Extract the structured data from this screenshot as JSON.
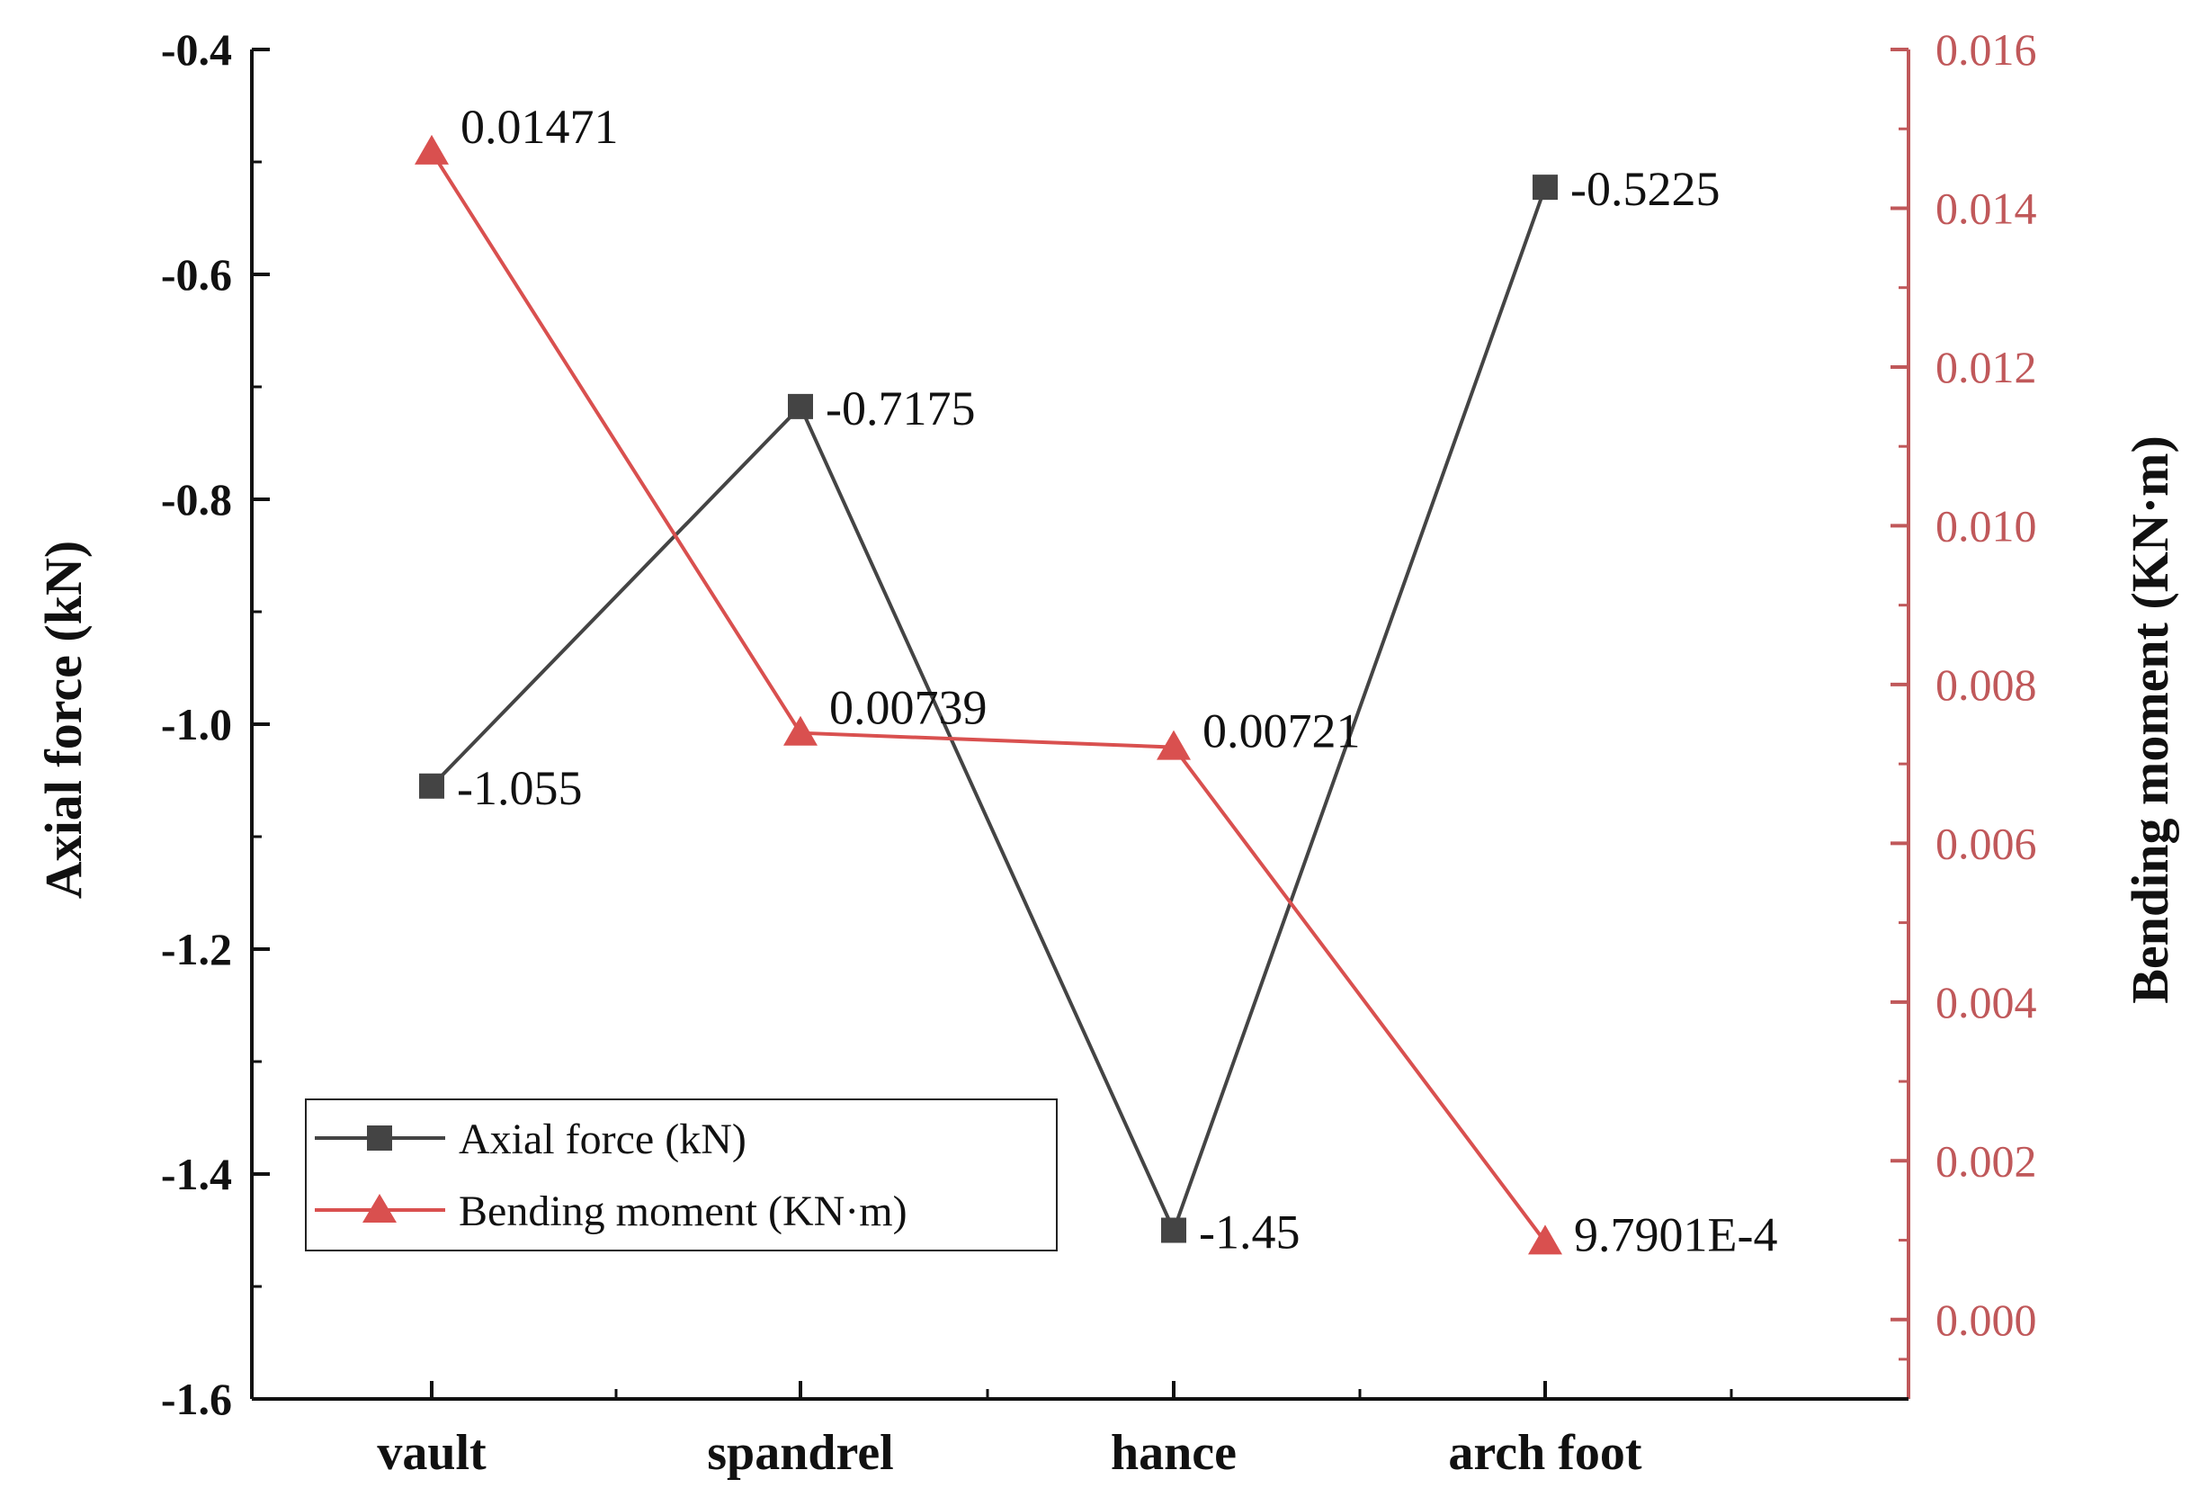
{
  "chart_data": {
    "type": "line",
    "categories": [
      "vault",
      "spandrel",
      "hance",
      "arch foot"
    ],
    "series": [
      {
        "name": "Axial force (kN)",
        "axis": "left",
        "color": "#444444",
        "marker": "square",
        "values": [
          -1.055,
          -0.7175,
          -1.45,
          -0.5225
        ],
        "labels": [
          "-1.055",
          "-0.7175",
          "-1.45",
          "-0.5225"
        ]
      },
      {
        "name": "Bending moment (KN·m)",
        "axis": "right",
        "color": "#d9504f",
        "marker": "triangle",
        "values": [
          0.01471,
          0.00739,
          0.00721,
          0.00097901
        ],
        "labels": [
          "0.01471",
          "0.00739",
          "0.00721",
          "9.7901E-4"
        ]
      }
    ],
    "y_left": {
      "label": "Axial force (kN)",
      "ylim": [
        -1.6,
        -0.4
      ],
      "ticks": [
        "-0.4",
        "-0.6",
        "-0.8",
        "-1.0",
        "-1.2",
        "-1.4",
        "-1.6"
      ],
      "color": "#111111"
    },
    "y_right": {
      "label": "Bending moment (KN·m)",
      "ylim": [
        -0.001,
        0.016
      ],
      "ticks": [
        "0.016",
        "0.014",
        "0.012",
        "0.010",
        "0.008",
        "0.006",
        "0.004",
        "0.002",
        "0.000"
      ],
      "color": "#c0585a"
    },
    "legend": {
      "position": "bottom-left",
      "entries": [
        "Axial force (kN)",
        "Bending moment (KN·m)"
      ]
    },
    "grid": false
  }
}
